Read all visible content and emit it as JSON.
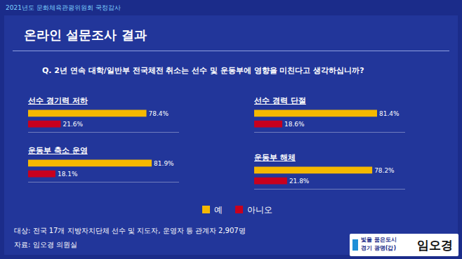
{
  "header": "2021년도 문화체육관광위원회 국정감사",
  "title": "온라인 설문조사 결과",
  "question": "Q. 2년 연속 대학/일반부 전국체전 취소는 선수 및 운동부에 영향을 미친다고 생각하십니까?",
  "note": {
    "target": "대상: 전국 17개 지방자치단체 선수 및 지도자, 운영자 등 관계자 2,907명",
    "source": "자료: 임오경 의원실"
  },
  "logo": {
    "slogan": [
      "빛을 품은도시",
      "경기 광명(갑)"
    ],
    "name": "임오경"
  },
  "chart_data": [
    {
      "type": "bar",
      "orientation": "horizontal",
      "title": "선수 경기력 저하",
      "categories": [
        null
      ],
      "series": [
        {
          "name": "예",
          "color": "#f5b800",
          "values": [
            78.4
          ],
          "value_labels": [
            "78.4%"
          ]
        },
        {
          "name": "아니오",
          "color": "#c8001e",
          "values": [
            21.6
          ],
          "value_labels": [
            "21.6%"
          ]
        }
      ],
      "xlim": [
        0,
        100
      ],
      "data_labels": true,
      "tick_labels": false
    },
    {
      "type": "bar",
      "orientation": "horizontal",
      "title": "선수 경력 단절",
      "categories": [
        null
      ],
      "series": [
        {
          "name": "예",
          "color": "#f5b800",
          "values": [
            81.4
          ],
          "value_labels": [
            "81.4%"
          ]
        },
        {
          "name": "아니오",
          "color": "#c8001e",
          "values": [
            18.6
          ],
          "value_labels": [
            "18.6%"
          ]
        }
      ],
      "xlim": [
        0,
        100
      ],
      "data_labels": true,
      "tick_labels": false
    },
    {
      "type": "bar",
      "orientation": "horizontal",
      "title": "운동부 축소 운영",
      "categories": [
        null
      ],
      "series": [
        {
          "name": "예",
          "color": "#f5b800",
          "values": [
            81.9
          ],
          "value_labels": [
            "81.9%"
          ]
        },
        {
          "name": "아니오",
          "color": "#c8001e",
          "values": [
            18.1
          ],
          "value_labels": [
            "18.1%"
          ]
        }
      ],
      "xlim": [
        0,
        100
      ],
      "data_labels": true,
      "tick_labels": false
    },
    {
      "type": "bar",
      "orientation": "horizontal",
      "title": "운동부 해체",
      "categories": [
        null
      ],
      "series": [
        {
          "name": "예",
          "color": "#f5b800",
          "values": [
            78.2
          ],
          "value_labels": [
            "78.2%"
          ]
        },
        {
          "name": "아니오",
          "color": "#c8001e",
          "values": [
            21.8
          ],
          "value_labels": [
            "21.8%"
          ]
        }
      ],
      "xlim": [
        0,
        100
      ],
      "data_labels": true,
      "tick_labels": false
    }
  ]
}
